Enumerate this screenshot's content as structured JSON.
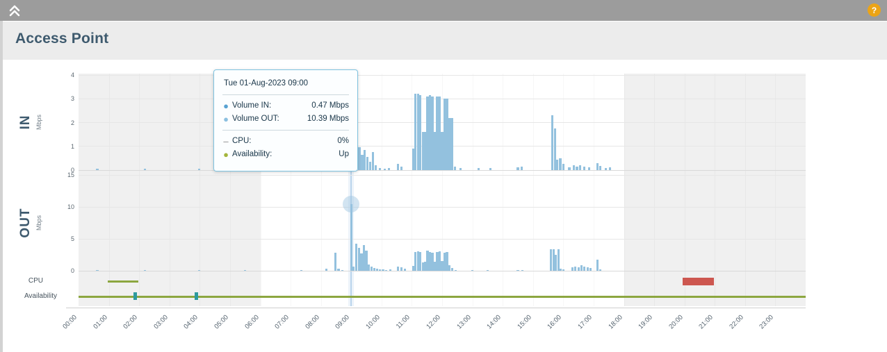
{
  "topbar": {
    "help_label": "?"
  },
  "header": {
    "title": "Access Point"
  },
  "tooltip": {
    "date": "Tue 01-Aug-2023 09:00",
    "rows": [
      {
        "bullet": "●",
        "color": "#58a2d2",
        "label": "Volume IN:",
        "value": "0.47 Mbps"
      },
      {
        "bullet": "●",
        "color": "#8cc0e0",
        "label": "Volume OUT:",
        "value": "10.39 Mbps"
      },
      {
        "bullet": "–",
        "color": "#8a8a8a",
        "label": "CPU:",
        "value": "0%"
      },
      {
        "bullet": "●",
        "color": "#a4b53c",
        "label": "Availability:",
        "value": "Up"
      }
    ]
  },
  "chart_data": {
    "x_unit": "time of day (hours)",
    "x_labels": [
      "00:00",
      "01:00",
      "02:00",
      "03:00",
      "04:00",
      "05:00",
      "06:00",
      "07:00",
      "08:00",
      "09:00",
      "10:00",
      "11:00",
      "12:00",
      "13:00",
      "14:00",
      "15:00",
      "16:00",
      "17:00",
      "18:00",
      "19:00",
      "20:00",
      "21:00",
      "22:00",
      "23:00"
    ],
    "night_shading_hours": [
      [
        0,
        6
      ],
      [
        18,
        24
      ]
    ],
    "highlight": {
      "hour": 9.0,
      "label": "Tue 01-Aug-2023 09:00",
      "volume_in_mbps": 0.47,
      "volume_out_mbps": 10.39,
      "cpu_pct": 0,
      "availability": "Up"
    },
    "charts": [
      {
        "id": "volume-in",
        "type": "bar",
        "title": "IN",
        "unit": "Mbps",
        "ylim": [
          0,
          4
        ],
        "yticks": [
          0,
          1,
          2,
          3,
          4
        ],
        "points": [
          [
            0.62,
            0.05
          ],
          [
            2.2,
            0.05
          ],
          [
            3.99,
            0.05
          ],
          [
            5.5,
            0.08
          ],
          [
            7.35,
            0.05
          ],
          [
            8.15,
            0.1
          ],
          [
            8.3,
            0.06
          ],
          [
            8.48,
            0.55
          ],
          [
            8.6,
            0.12
          ],
          [
            8.72,
            0.08
          ],
          [
            8.85,
            0.06
          ],
          [
            9.0,
            0.47
          ],
          [
            9.08,
            0.5
          ],
          [
            9.17,
            1.1
          ],
          [
            9.27,
            0.95
          ],
          [
            9.36,
            0.65
          ],
          [
            9.45,
            0.85
          ],
          [
            9.54,
            0.55
          ],
          [
            9.63,
            0.35
          ],
          [
            9.72,
            0.75
          ],
          [
            9.81,
            0.2
          ],
          [
            9.95,
            0.08
          ],
          [
            10.1,
            0.07
          ],
          [
            10.25,
            0.08
          ],
          [
            10.55,
            0.25
          ],
          [
            10.65,
            0.15
          ],
          [
            11.05,
            0.9
          ],
          [
            11.12,
            3.2
          ],
          [
            11.2,
            3.2
          ],
          [
            11.28,
            3.15
          ],
          [
            11.36,
            1.6
          ],
          [
            11.44,
            1.6
          ],
          [
            11.52,
            3.1
          ],
          [
            11.6,
            3.15
          ],
          [
            11.68,
            3.1
          ],
          [
            11.76,
            1.6
          ],
          [
            11.84,
            3.1
          ],
          [
            11.92,
            3.1
          ],
          [
            12.0,
            1.6
          ],
          [
            12.08,
            3.0
          ],
          [
            12.16,
            3.0
          ],
          [
            12.24,
            2.2
          ],
          [
            12.32,
            2.2
          ],
          [
            12.42,
            0.15
          ],
          [
            12.6,
            0.08
          ],
          [
            13.2,
            0.1
          ],
          [
            13.6,
            0.08
          ],
          [
            14.5,
            0.12
          ],
          [
            14.62,
            0.15
          ],
          [
            15.64,
            2.3
          ],
          [
            15.72,
            1.75
          ],
          [
            15.8,
            0.45
          ],
          [
            15.9,
            0.5
          ],
          [
            16.0,
            0.25
          ],
          [
            16.2,
            0.12
          ],
          [
            16.35,
            0.2
          ],
          [
            16.45,
            0.15
          ],
          [
            16.55,
            0.2
          ],
          [
            16.7,
            0.15
          ],
          [
            16.85,
            0.12
          ],
          [
            17.12,
            0.3
          ],
          [
            17.22,
            0.18
          ],
          [
            17.4,
            0.1
          ],
          [
            17.55,
            0.12
          ]
        ]
      },
      {
        "id": "volume-out",
        "type": "bar",
        "title": "OUT",
        "unit": "Mbps",
        "ylim": [
          0,
          15
        ],
        "yticks": [
          0,
          5,
          10,
          15
        ],
        "points": [
          [
            0.62,
            0.08
          ],
          [
            2.2,
            0.08
          ],
          [
            3.99,
            0.08
          ],
          [
            5.5,
            0.1
          ],
          [
            7.35,
            0.08
          ],
          [
            8.18,
            0.35
          ],
          [
            8.48,
            2.8
          ],
          [
            8.58,
            0.35
          ],
          [
            8.7,
            0.12
          ],
          [
            9.0,
            10.39
          ],
          [
            9.08,
            0.6
          ],
          [
            9.17,
            4.2
          ],
          [
            9.26,
            3.6
          ],
          [
            9.34,
            2.7
          ],
          [
            9.42,
            4.0
          ],
          [
            9.5,
            3.1
          ],
          [
            9.58,
            1.0
          ],
          [
            9.67,
            0.6
          ],
          [
            9.76,
            0.45
          ],
          [
            9.85,
            0.3
          ],
          [
            9.94,
            0.2
          ],
          [
            10.05,
            0.2
          ],
          [
            10.15,
            0.15
          ],
          [
            10.3,
            0.2
          ],
          [
            10.55,
            0.7
          ],
          [
            10.65,
            0.5
          ],
          [
            10.78,
            0.3
          ],
          [
            11.05,
            0.8
          ],
          [
            11.12,
            2.9
          ],
          [
            11.2,
            3.0
          ],
          [
            11.28,
            2.9
          ],
          [
            11.36,
            1.3
          ],
          [
            11.44,
            1.4
          ],
          [
            11.52,
            3.1
          ],
          [
            11.6,
            2.9
          ],
          [
            11.68,
            2.85
          ],
          [
            11.76,
            1.4
          ],
          [
            11.84,
            2.9
          ],
          [
            11.92,
            3.0
          ],
          [
            12.0,
            1.5
          ],
          [
            12.08,
            2.8
          ],
          [
            12.16,
            2.9
          ],
          [
            12.24,
            0.9
          ],
          [
            12.34,
            0.4
          ],
          [
            12.44,
            0.15
          ],
          [
            13.0,
            0.1
          ],
          [
            13.5,
            0.12
          ],
          [
            14.5,
            0.15
          ],
          [
            14.65,
            0.12
          ],
          [
            15.6,
            3.4
          ],
          [
            15.68,
            3.4
          ],
          [
            15.76,
            2.5
          ],
          [
            15.84,
            3.4
          ],
          [
            15.92,
            0.35
          ],
          [
            16.0,
            0.25
          ],
          [
            16.3,
            0.5
          ],
          [
            16.4,
            0.7
          ],
          [
            16.5,
            0.55
          ],
          [
            16.6,
            0.9
          ],
          [
            16.7,
            0.6
          ],
          [
            16.8,
            0.5
          ],
          [
            16.9,
            0.4
          ],
          [
            17.12,
            1.7
          ],
          [
            17.22,
            0.25
          ]
        ]
      },
      {
        "id": "cpu",
        "type": "status-segments",
        "label": "CPU",
        "segments": [
          {
            "start_hour": 0.97,
            "end_hour": 1.97,
            "status": "ok",
            "value": "0%"
          },
          {
            "start_hour": 19.95,
            "end_hour": 20.97,
            "status": "alarm"
          }
        ]
      },
      {
        "id": "availability",
        "type": "status-line",
        "label": "Availability",
        "line": {
          "start_hour": 0,
          "end_hour": 24,
          "status": "up"
        },
        "markers_hours": [
          1.86,
          3.9
        ]
      }
    ],
    "colors": {
      "bar": "#93c1de",
      "night": "#f0f0f0",
      "ok": "#8ca640",
      "alarm": "#cd5750",
      "marker": "#2d9a9e",
      "highlight": "#9cc2e2"
    }
  }
}
